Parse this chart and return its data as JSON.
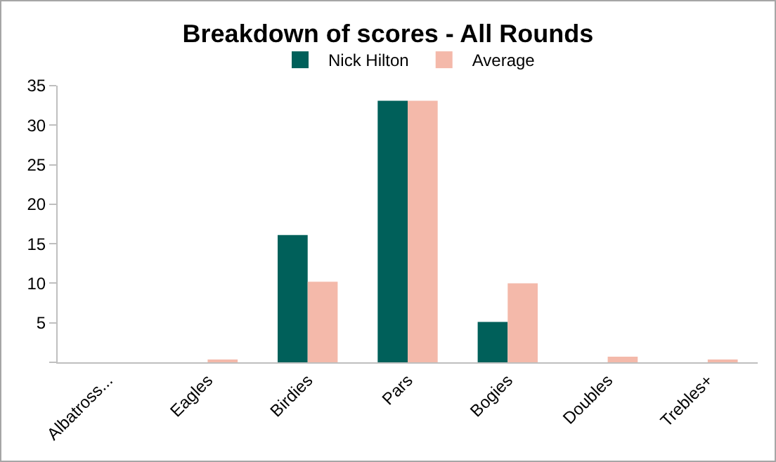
{
  "chart_data": {
    "type": "bar",
    "title": "Breakdown of scores - All Rounds",
    "categories": [
      "Albatross...",
      "Eagles",
      "Birdies",
      "Pars",
      "Bogies",
      "Doubles",
      "Trebles+"
    ],
    "series": [
      {
        "name": "Nick Hilton",
        "color": "#00605a",
        "values": [
          0,
          0,
          16.1,
          33.1,
          5.1,
          0,
          0
        ]
      },
      {
        "name": "Average",
        "color": "#f4b9aa",
        "values": [
          0,
          0.2,
          10.2,
          33.1,
          10,
          0.7,
          0.3
        ]
      }
    ],
    "ylim": [
      0,
      35
    ],
    "yticks": [
      {
        "value": 0,
        "label": null
      },
      5,
      10,
      15,
      20,
      25,
      30,
      35
    ],
    "grid": false,
    "legend": "top"
  }
}
